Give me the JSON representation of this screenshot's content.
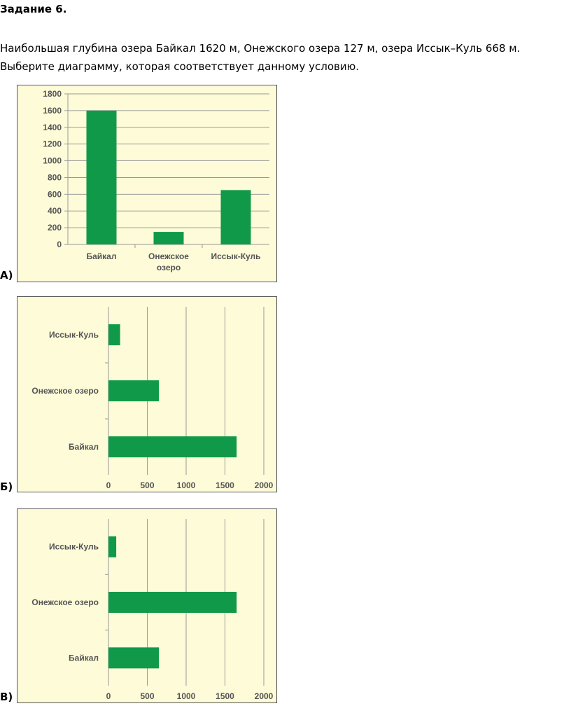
{
  "title": "Задание 6.",
  "task_text": "Наибольшая глубина озера Байкал 1620 м, Онежского озера 127 м, озера Иссык–Куль 668 м. Выберите диаграмму, которая соответствует данному условию.",
  "colors": {
    "bar": "#11994a",
    "panel_bg": "#fdfbd8",
    "grid": "#999999",
    "text": "#555555"
  },
  "options": [
    {
      "label": "А)"
    },
    {
      "label": "Б)"
    },
    {
      "label": "В)"
    }
  ],
  "chart_data": [
    {
      "type": "bar",
      "orientation": "vertical",
      "categories": [
        "Байкал",
        "Онежское озеро",
        "Иссык-Куль"
      ],
      "category_labels": [
        [
          "Байкал"
        ],
        [
          "Онежское",
          "озеро"
        ],
        [
          "Иссык-Куль"
        ]
      ],
      "values": [
        1600,
        150,
        650
      ],
      "ylim": [
        0,
        1800
      ],
      "yticks": [
        "0",
        "200",
        "400",
        "600",
        "800",
        "1000",
        "1200",
        "1400",
        "1600",
        "1800"
      ],
      "grid": true
    },
    {
      "type": "bar",
      "orientation": "horizontal",
      "categories": [
        "Иссык-Куль",
        "Онежское озеро",
        "Байкал"
      ],
      "values": [
        150,
        650,
        1650
      ],
      "xlim": [
        0,
        2000
      ],
      "xticks": [
        "0",
        "500",
        "1000",
        "1500",
        "2000"
      ],
      "grid": true
    },
    {
      "type": "bar",
      "orientation": "horizontal",
      "categories": [
        "Иссык-Куль",
        "Онежское озеро",
        "Байкал"
      ],
      "values": [
        100,
        1650,
        650
      ],
      "xlim": [
        0,
        2000
      ],
      "xticks": [
        "0",
        "500",
        "1000",
        "1500",
        "2000"
      ],
      "grid": true
    }
  ]
}
